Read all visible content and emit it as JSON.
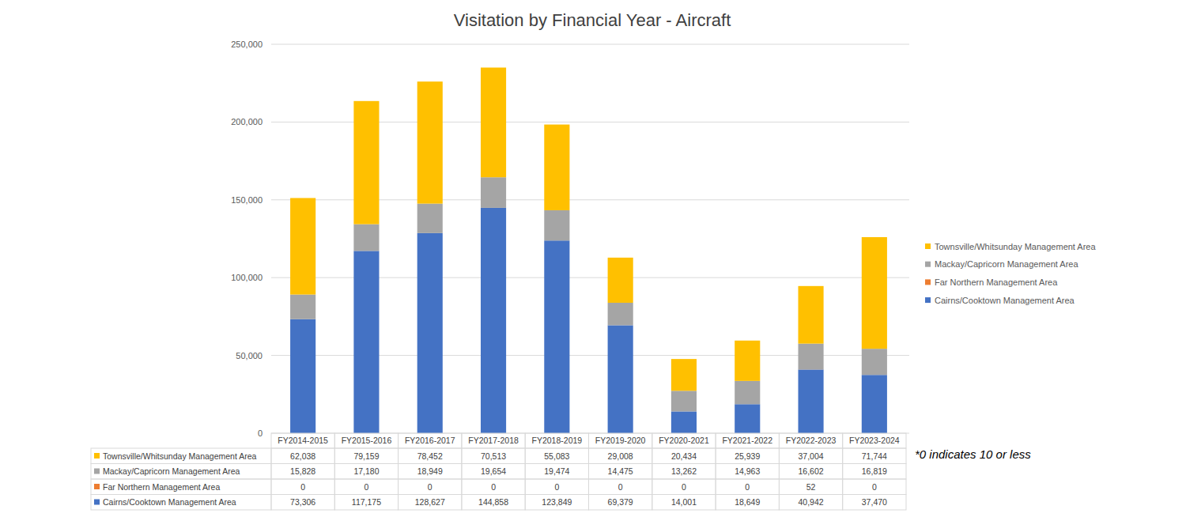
{
  "chart_data": {
    "type": "bar",
    "title": "Visitation by Financial Year - Aircraft",
    "stacked": true,
    "grid": true,
    "legend": "right",
    "categories": [
      "FY2014-2015",
      "FY2015-2016",
      "FY2016-2017",
      "FY2017-2018",
      "FY2018-2019",
      "FY2019-2020",
      "FY2020-2021",
      "FY2021-2022",
      "FY2022-2023",
      "FY2023-2024"
    ],
    "series": [
      {
        "name": "Cairns/Cooktown Management Area",
        "color": "#4472c4",
        "values": [
          73306,
          117175,
          128627,
          144858,
          123849,
          69379,
          14001,
          18649,
          40942,
          37470
        ],
        "value_labels": [
          "73,306",
          "117,175",
          "128,627",
          "144,858",
          "123,849",
          "69,379",
          "14,001",
          "18,649",
          "40,942",
          "37,470"
        ]
      },
      {
        "name": "Far Northern Management Area",
        "color": "#ed7d31",
        "values": [
          0,
          0,
          0,
          0,
          0,
          0,
          0,
          0,
          52,
          0
        ],
        "value_labels": [
          "0",
          "0",
          "0",
          "0",
          "0",
          "0",
          "0",
          "0",
          "52",
          "0"
        ]
      },
      {
        "name": "Mackay/Capricorn Management Area",
        "color": "#a5a5a5",
        "values": [
          15828,
          17180,
          18949,
          19654,
          19474,
          14475,
          13262,
          14963,
          16602,
          16819
        ],
        "value_labels": [
          "15,828",
          "17,180",
          "18,949",
          "19,654",
          "19,474",
          "14,475",
          "13,262",
          "14,963",
          "16,602",
          "16,819"
        ]
      },
      {
        "name": "Townsville/Whitsunday Management Area",
        "color": "#ffc000",
        "values": [
          62038,
          79159,
          78452,
          70513,
          55083,
          29008,
          20434,
          25939,
          37004,
          71744
        ],
        "value_labels": [
          "62,038",
          "79,159",
          "78,452",
          "70,513",
          "55,083",
          "29,008",
          "20,434",
          "25,939",
          "37,004",
          "71,744"
        ]
      }
    ],
    "ylim": [
      0,
      250000
    ],
    "yticks": [
      0,
      {
        "value": 50000,
        "label": "50,000"
      },
      {
        "value": 100000,
        "label": "100,000"
      },
      {
        "value": 150000,
        "label": "150,000"
      },
      {
        "value": 200000,
        "label": "200,000"
      },
      {
        "value": 250000,
        "label": "250,000"
      }
    ],
    "annotations": [
      "*0 indicates 10 or less"
    ]
  }
}
